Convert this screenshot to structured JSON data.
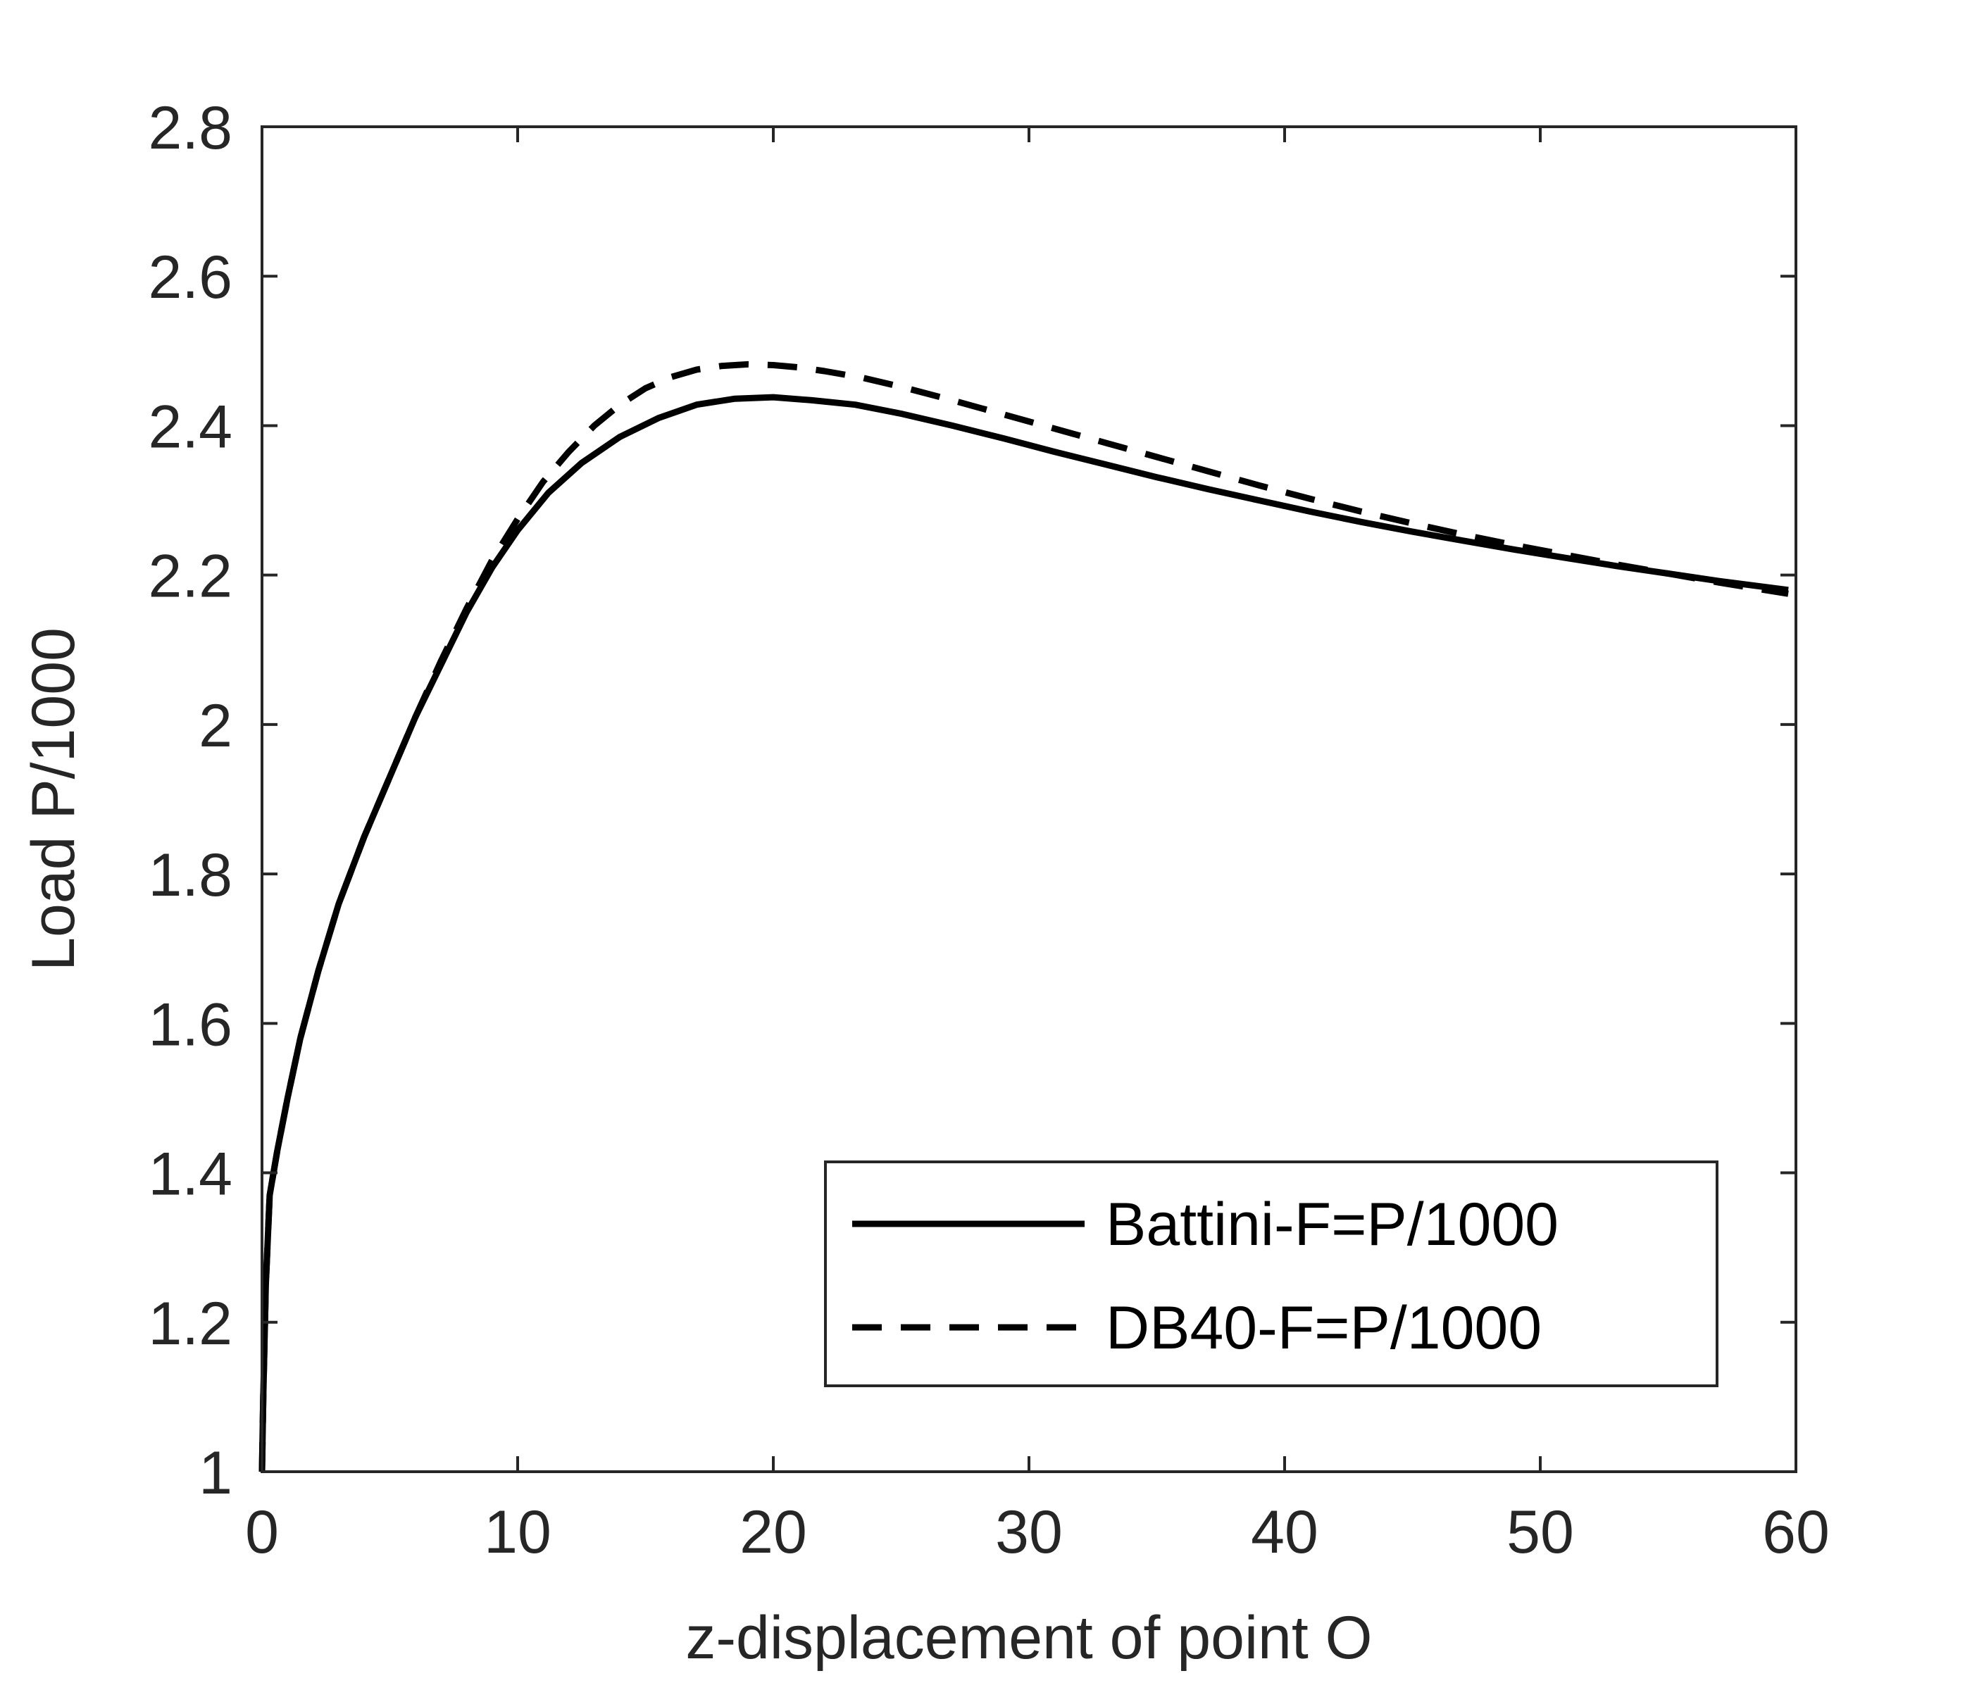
{
  "chart_data": {
    "type": "line",
    "title": "",
    "xlabel": "z-displacement of point O",
    "ylabel": "Load P/1000",
    "xlim": [
      0,
      60
    ],
    "ylim": [
      1,
      2.8
    ],
    "xticks": [
      0,
      10,
      20,
      30,
      40,
      50,
      60
    ],
    "yticks": [
      1,
      1.2,
      1.4,
      1.6,
      1.8,
      2,
      2.2,
      2.4,
      2.6,
      2.8
    ],
    "xtick_labels": [
      "0",
      "10",
      "20",
      "30",
      "40",
      "50",
      "60"
    ],
    "ytick_labels": [
      "1",
      "1.2",
      "1.4",
      "1.6",
      "1.8",
      "2",
      "2.2",
      "2.4",
      "2.6",
      "2.8"
    ],
    "grid": false,
    "box": true,
    "legend_position": "bottom-right",
    "series": [
      {
        "name": "Battini-F=P/1000",
        "line_style": "solid",
        "color": "#000000",
        "x": [
          0,
          0.05,
          0.15,
          0.3,
          0.6,
          1.0,
          1.5,
          2.2,
          3.0,
          4.0,
          5.0,
          6.0,
          7.0,
          8.0,
          9.0,
          10.0,
          11.2,
          12.5,
          14.0,
          15.5,
          17.0,
          18.5,
          20.0,
          21.5,
          23.2,
          25.0,
          27.0,
          29.0,
          31.0,
          33.0,
          35.0,
          37.0,
          39.0,
          41.0,
          43.0,
          45.0,
          47.0,
          49.0,
          51.0,
          53.0,
          55.0,
          57.0,
          59.7
        ],
        "y": [
          1.0,
          1.1,
          1.25,
          1.37,
          1.43,
          1.5,
          1.58,
          1.67,
          1.76,
          1.85,
          1.93,
          2.01,
          2.08,
          2.15,
          2.21,
          2.26,
          2.31,
          2.35,
          2.385,
          2.41,
          2.428,
          2.436,
          2.438,
          2.434,
          2.428,
          2.416,
          2.4,
          2.383,
          2.365,
          2.348,
          2.331,
          2.315,
          2.3,
          2.285,
          2.271,
          2.258,
          2.246,
          2.234,
          2.223,
          2.212,
          2.202,
          2.192,
          2.18
        ]
      },
      {
        "name": "DB40-F=P/1000",
        "line_style": "dashed",
        "color": "#000000",
        "x": [
          0,
          0.05,
          0.15,
          0.3,
          0.6,
          1.0,
          1.5,
          2.2,
          3.0,
          4.0,
          5.0,
          6.0,
          7.0,
          8.0,
          9.0,
          10.0,
          11.0,
          12.0,
          13.0,
          14.0,
          15.0,
          16.0,
          17.0,
          18.0,
          19.0,
          20.0,
          21.0,
          22.0,
          23.5,
          25.0,
          27.0,
          29.0,
          31.0,
          33.0,
          35.0,
          37.0,
          39.0,
          41.0,
          43.0,
          45.0,
          47.0,
          49.0,
          51.0,
          53.0,
          55.0,
          57.0,
          59.7
        ],
        "y": [
          1.0,
          1.1,
          1.25,
          1.37,
          1.43,
          1.5,
          1.58,
          1.67,
          1.76,
          1.85,
          1.93,
          2.01,
          2.085,
          2.155,
          2.22,
          2.275,
          2.325,
          2.365,
          2.4,
          2.428,
          2.45,
          2.465,
          2.475,
          2.48,
          2.482,
          2.481,
          2.478,
          2.473,
          2.464,
          2.452,
          2.434,
          2.415,
          2.396,
          2.377,
          2.358,
          2.339,
          2.32,
          2.302,
          2.285,
          2.269,
          2.254,
          2.24,
          2.227,
          2.214,
          2.202,
          2.19,
          2.175
        ]
      }
    ]
  }
}
